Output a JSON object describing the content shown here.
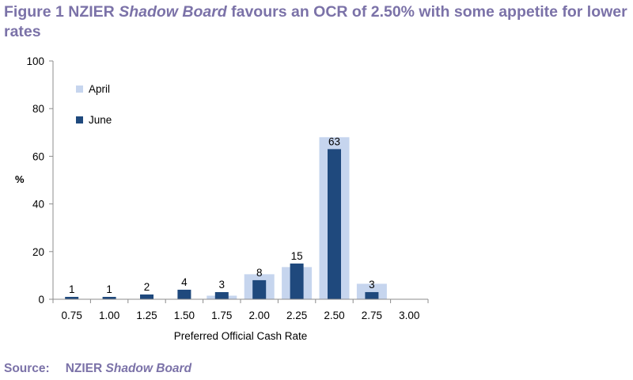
{
  "figure": {
    "title_part1": "Figure 1 NZIER ",
    "title_italic": "Shadow Board",
    "title_part2": " favours an OCR of 2.50% with some appetite for lower rates"
  },
  "source": {
    "label": "Source:",
    "text": "NZIER ",
    "italic": "Shadow Board"
  },
  "chart_data": {
    "type": "bar",
    "categories": [
      "0.75",
      "1.00",
      "1.25",
      "1.50",
      "1.75",
      "2.00",
      "2.25",
      "2.50",
      "2.75",
      "3.00"
    ],
    "series": [
      {
        "name": "April",
        "color": "#c6d5ee",
        "values": [
          0,
          0,
          0,
          0,
          1.5,
          10.5,
          13.5,
          68,
          6.5,
          0
        ]
      },
      {
        "name": "June",
        "color": "#1f497d",
        "values": [
          1,
          1,
          2,
          4,
          3,
          8,
          15,
          63,
          3,
          0
        ],
        "labels": [
          "1",
          "1",
          "2",
          "4",
          "3",
          "8",
          "15",
          "63",
          "3",
          ""
        ]
      }
    ],
    "xlabel": "Preferred Official Cash Rate",
    "ylabel": "%",
    "ylim": [
      0,
      100
    ],
    "yticks": [
      0,
      20,
      40,
      60,
      80,
      100
    ],
    "grid": false,
    "legend_position": "top-left"
  }
}
